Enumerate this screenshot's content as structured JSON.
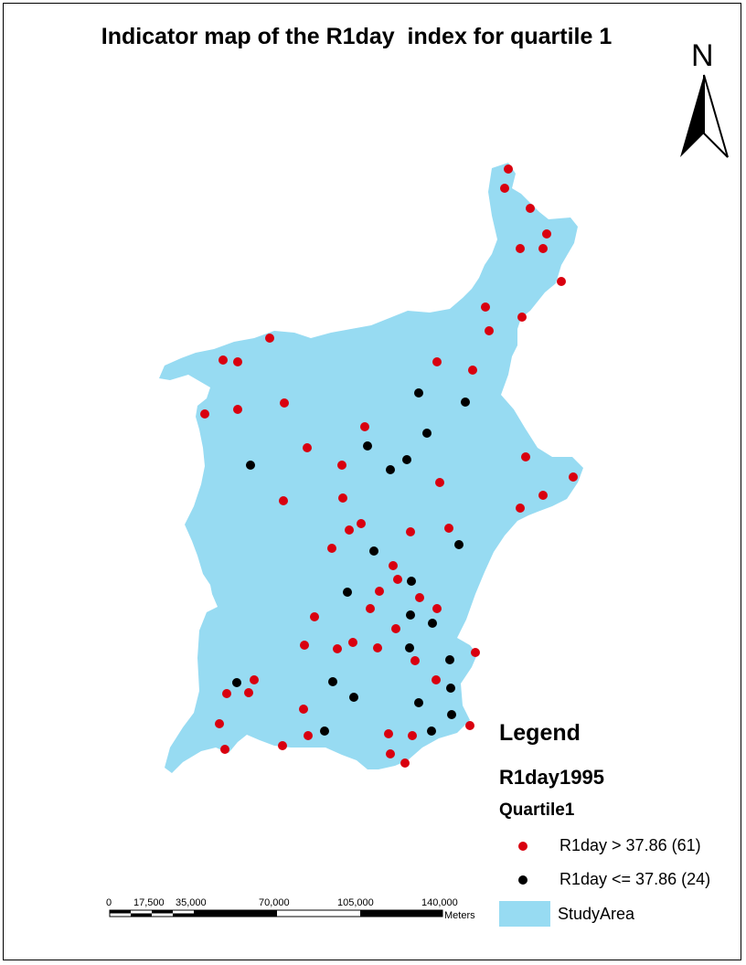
{
  "title": "Indicator map of the R1day  index for quartile 1",
  "north_arrow": {
    "letter": "N"
  },
  "legend": {
    "title": "Legend",
    "layer": "R1day1995",
    "field": "Quartile1",
    "items": [
      {
        "label": "R1day > 37.86 (61)",
        "color": "#d9000f"
      },
      {
        "label": "R1day <= 37.86 (24)",
        "color": "#000000"
      }
    ],
    "area": {
      "label": "StudyArea",
      "color": "#97dbf2"
    }
  },
  "scale_bar": {
    "labels": [
      "0",
      "17,500",
      "35,000",
      "70,000",
      "105,000",
      "140,000"
    ],
    "unit": "Meters"
  },
  "colors": {
    "study_area": "#97dbf2",
    "above": "#d9000f",
    "below": "#000000"
  }
}
